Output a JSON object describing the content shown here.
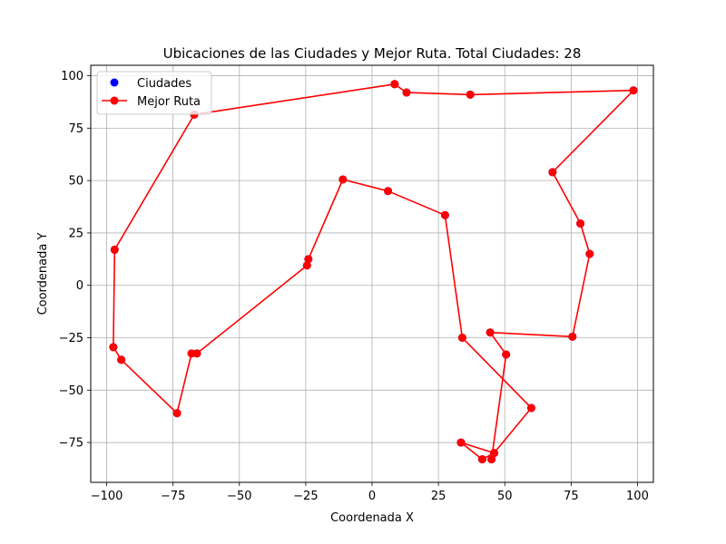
{
  "chart_data": {
    "type": "line",
    "title": "Ubicaciones de las Ciudades y Mejor Ruta. Total Ciudades: 28",
    "xlabel": "Coordenada X",
    "ylabel": "Coordenada Y",
    "xlim": [
      -106,
      106
    ],
    "ylim": [
      -94,
      105
    ],
    "xticks": [
      -100,
      -75,
      -50,
      -25,
      0,
      25,
      50,
      75,
      100
    ],
    "yticks": [
      -75,
      -50,
      -25,
      0,
      25,
      50,
      75,
      100
    ],
    "grid": true,
    "legend_position": "top-left",
    "series": [
      {
        "name": "Ciudades",
        "kind": "scatter",
        "color": "#0000ff",
        "x": [
          8.5,
          13.0,
          37.0,
          98.5,
          68.0,
          78.5,
          82.0,
          75.5,
          44.5,
          50.5,
          60.0,
          46.0,
          45.0,
          41.5,
          33.5,
          34.0,
          27.5,
          6.0,
          -11.0,
          -24.0,
          -24.5,
          -66.0,
          -68.0,
          -73.5,
          -94.5,
          -97.5,
          -97.0,
          -67.0
        ],
        "y": [
          96,
          92,
          91,
          93,
          54,
          29.5,
          15,
          -24.5,
          -22.5,
          -33,
          -58.5,
          -80,
          -83,
          -83,
          -75,
          -25,
          33.5,
          45,
          50.5,
          12.5,
          9.5,
          -32.5,
          -32.5,
          -61,
          -35.5,
          -29.5,
          17,
          81.5
        ]
      },
      {
        "name": "Mejor Ruta",
        "kind": "line",
        "color": "#ff0000",
        "x": [
          8.5,
          13.0,
          37.0,
          98.5,
          68.0,
          78.5,
          82.0,
          75.5,
          44.5,
          50.5,
          45.0,
          46.0,
          41.5,
          33.5,
          46.0,
          60.0,
          34.0,
          27.5,
          6.0,
          -11.0,
          -24.0,
          -24.5,
          -66.0,
          -68.0,
          -73.5,
          -94.5,
          -97.5,
          -97.0,
          -67.0,
          8.5
        ],
        "y": [
          96,
          92,
          91,
          93,
          54,
          29.5,
          15,
          -24.5,
          -22.5,
          -33,
          -83,
          -80,
          -83,
          -75,
          -80,
          -58.5,
          -25,
          33.5,
          45,
          50.5,
          12.5,
          9.5,
          -32.5,
          -32.5,
          -61,
          -35.5,
          -29.5,
          17,
          81.5,
          96
        ]
      }
    ]
  }
}
